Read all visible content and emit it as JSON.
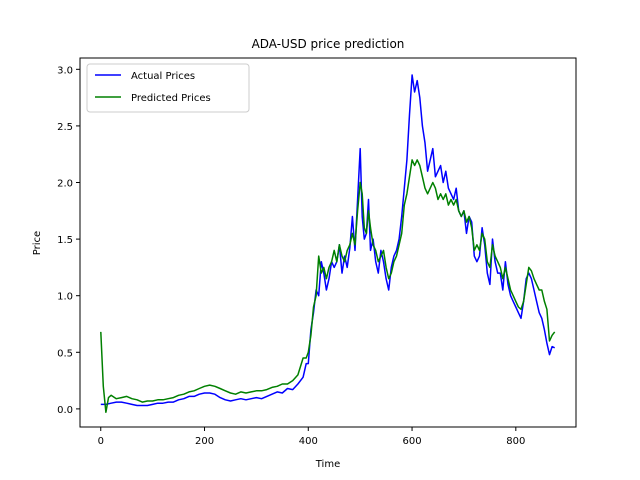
{
  "chart_data": {
    "type": "line",
    "title": "ADA-USD price prediction",
    "xlabel": "Time",
    "ylabel": "Price",
    "xlim": [
      -40,
      916
    ],
    "ylim": [
      -0.16,
      3.1
    ],
    "xticks": [
      0,
      200,
      400,
      600,
      800
    ],
    "yticks": [
      0.0,
      0.5,
      1.0,
      1.5,
      2.0,
      2.5,
      3.0
    ],
    "xtick_labels": [
      "0",
      "200",
      "400",
      "600",
      "800"
    ],
    "ytick_labels": [
      "0.0",
      "0.5",
      "1.0",
      "1.5",
      "2.0",
      "2.5",
      "3.0"
    ],
    "grid": false,
    "legend": {
      "position": "upper-left",
      "entries": [
        "Actual Prices",
        "Predicted Prices"
      ]
    },
    "series": [
      {
        "name": "Actual Prices",
        "color": "#0000ff",
        "points": [
          [
            0,
            0.04
          ],
          [
            10,
            0.04
          ],
          [
            20,
            0.05
          ],
          [
            30,
            0.06
          ],
          [
            40,
            0.06
          ],
          [
            50,
            0.05
          ],
          [
            60,
            0.04
          ],
          [
            70,
            0.03
          ],
          [
            80,
            0.03
          ],
          [
            90,
            0.03
          ],
          [
            100,
            0.04
          ],
          [
            110,
            0.05
          ],
          [
            120,
            0.05
          ],
          [
            130,
            0.06
          ],
          [
            140,
            0.06
          ],
          [
            150,
            0.08
          ],
          [
            160,
            0.09
          ],
          [
            170,
            0.11
          ],
          [
            180,
            0.11
          ],
          [
            190,
            0.13
          ],
          [
            200,
            0.14
          ],
          [
            210,
            0.14
          ],
          [
            220,
            0.13
          ],
          [
            230,
            0.1
          ],
          [
            240,
            0.08
          ],
          [
            250,
            0.07
          ],
          [
            260,
            0.08
          ],
          [
            270,
            0.09
          ],
          [
            280,
            0.08
          ],
          [
            290,
            0.09
          ],
          [
            300,
            0.1
          ],
          [
            310,
            0.09
          ],
          [
            320,
            0.11
          ],
          [
            330,
            0.13
          ],
          [
            340,
            0.15
          ],
          [
            350,
            0.14
          ],
          [
            360,
            0.18
          ],
          [
            370,
            0.17
          ],
          [
            380,
            0.22
          ],
          [
            390,
            0.28
          ],
          [
            396,
            0.4
          ],
          [
            400,
            0.4
          ],
          [
            405,
            0.7
          ],
          [
            410,
            0.85
          ],
          [
            415,
            1.05
          ],
          [
            420,
            1.0
          ],
          [
            425,
            1.3
          ],
          [
            430,
            1.2
          ],
          [
            435,
            1.05
          ],
          [
            440,
            1.15
          ],
          [
            445,
            1.3
          ],
          [
            450,
            1.25
          ],
          [
            455,
            1.3
          ],
          [
            460,
            1.45
          ],
          [
            465,
            1.2
          ],
          [
            470,
            1.35
          ],
          [
            475,
            1.25
          ],
          [
            480,
            1.42
          ],
          [
            485,
            1.7
          ],
          [
            490,
            1.4
          ],
          [
            495,
            1.85
          ],
          [
            500,
            2.3
          ],
          [
            504,
            1.7
          ],
          [
            508,
            1.5
          ],
          [
            512,
            1.55
          ],
          [
            516,
            1.85
          ],
          [
            520,
            1.4
          ],
          [
            525,
            1.5
          ],
          [
            530,
            1.3
          ],
          [
            535,
            1.2
          ],
          [
            540,
            1.4
          ],
          [
            545,
            1.3
          ],
          [
            550,
            1.15
          ],
          [
            555,
            1.05
          ],
          [
            560,
            1.25
          ],
          [
            565,
            1.35
          ],
          [
            570,
            1.4
          ],
          [
            575,
            1.5
          ],
          [
            580,
            1.7
          ],
          [
            585,
            1.95
          ],
          [
            590,
            2.2
          ],
          [
            595,
            2.6
          ],
          [
            600,
            2.95
          ],
          [
            605,
            2.8
          ],
          [
            610,
            2.9
          ],
          [
            615,
            2.75
          ],
          [
            620,
            2.5
          ],
          [
            625,
            2.35
          ],
          [
            630,
            2.1
          ],
          [
            635,
            2.2
          ],
          [
            640,
            2.3
          ],
          [
            645,
            2.05
          ],
          [
            650,
            2.1
          ],
          [
            655,
            2.15
          ],
          [
            660,
            2.0
          ],
          [
            665,
            2.1
          ],
          [
            670,
            1.95
          ],
          [
            675,
            1.9
          ],
          [
            680,
            1.85
          ],
          [
            685,
            1.95
          ],
          [
            690,
            1.75
          ],
          [
            695,
            1.7
          ],
          [
            700,
            1.75
          ],
          [
            705,
            1.55
          ],
          [
            710,
            1.7
          ],
          [
            715,
            1.65
          ],
          [
            720,
            1.35
          ],
          [
            725,
            1.3
          ],
          [
            730,
            1.35
          ],
          [
            735,
            1.6
          ],
          [
            740,
            1.45
          ],
          [
            745,
            1.2
          ],
          [
            750,
            1.1
          ],
          [
            755,
            1.5
          ],
          [
            760,
            1.3
          ],
          [
            765,
            1.2
          ],
          [
            770,
            1.2
          ],
          [
            775,
            1.05
          ],
          [
            780,
            1.3
          ],
          [
            785,
            1.1
          ],
          [
            790,
            1.0
          ],
          [
            795,
            0.95
          ],
          [
            800,
            0.9
          ],
          [
            805,
            0.85
          ],
          [
            810,
            0.8
          ],
          [
            815,
            0.95
          ],
          [
            820,
            1.15
          ],
          [
            825,
            1.2
          ],
          [
            830,
            1.15
          ],
          [
            835,
            1.05
          ],
          [
            840,
            0.95
          ],
          [
            845,
            0.85
          ],
          [
            850,
            0.8
          ],
          [
            855,
            0.7
          ],
          [
            860,
            0.58
          ],
          [
            865,
            0.48
          ],
          [
            870,
            0.55
          ],
          [
            875,
            0.54
          ]
        ]
      },
      {
        "name": "Predicted Prices",
        "color": "#008000",
        "points": [
          [
            0,
            0.68
          ],
          [
            5,
            0.2
          ],
          [
            10,
            -0.03
          ],
          [
            15,
            0.1
          ],
          [
            20,
            0.12
          ],
          [
            30,
            0.09
          ],
          [
            40,
            0.1
          ],
          [
            50,
            0.11
          ],
          [
            60,
            0.09
          ],
          [
            70,
            0.08
          ],
          [
            80,
            0.06
          ],
          [
            90,
            0.07
          ],
          [
            100,
            0.07
          ],
          [
            110,
            0.08
          ],
          [
            120,
            0.08
          ],
          [
            130,
            0.09
          ],
          [
            140,
            0.1
          ],
          [
            150,
            0.12
          ],
          [
            160,
            0.13
          ],
          [
            170,
            0.15
          ],
          [
            180,
            0.16
          ],
          [
            190,
            0.18
          ],
          [
            200,
            0.2
          ],
          [
            210,
            0.21
          ],
          [
            220,
            0.2
          ],
          [
            230,
            0.18
          ],
          [
            240,
            0.16
          ],
          [
            250,
            0.14
          ],
          [
            260,
            0.13
          ],
          [
            270,
            0.15
          ],
          [
            280,
            0.14
          ],
          [
            290,
            0.15
          ],
          [
            300,
            0.16
          ],
          [
            310,
            0.16
          ],
          [
            320,
            0.17
          ],
          [
            330,
            0.19
          ],
          [
            340,
            0.2
          ],
          [
            350,
            0.22
          ],
          [
            360,
            0.22
          ],
          [
            370,
            0.25
          ],
          [
            380,
            0.3
          ],
          [
            390,
            0.45
          ],
          [
            396,
            0.45
          ],
          [
            400,
            0.5
          ],
          [
            405,
            0.65
          ],
          [
            410,
            0.9
          ],
          [
            415,
            1.0
          ],
          [
            420,
            1.35
          ],
          [
            425,
            1.2
          ],
          [
            430,
            1.25
          ],
          [
            435,
            1.15
          ],
          [
            440,
            1.25
          ],
          [
            445,
            1.3
          ],
          [
            450,
            1.4
          ],
          [
            455,
            1.3
          ],
          [
            460,
            1.45
          ],
          [
            465,
            1.35
          ],
          [
            470,
            1.3
          ],
          [
            475,
            1.4
          ],
          [
            480,
            1.45
          ],
          [
            485,
            1.55
          ],
          [
            490,
            1.45
          ],
          [
            495,
            1.75
          ],
          [
            500,
            2.0
          ],
          [
            504,
            1.9
          ],
          [
            508,
            1.6
          ],
          [
            512,
            1.55
          ],
          [
            516,
            1.75
          ],
          [
            520,
            1.6
          ],
          [
            525,
            1.45
          ],
          [
            530,
            1.4
          ],
          [
            535,
            1.3
          ],
          [
            540,
            1.35
          ],
          [
            545,
            1.4
          ],
          [
            550,
            1.25
          ],
          [
            555,
            1.15
          ],
          [
            560,
            1.2
          ],
          [
            565,
            1.3
          ],
          [
            570,
            1.35
          ],
          [
            575,
            1.45
          ],
          [
            580,
            1.55
          ],
          [
            585,
            1.8
          ],
          [
            590,
            1.9
          ],
          [
            595,
            2.05
          ],
          [
            600,
            2.2
          ],
          [
            605,
            2.15
          ],
          [
            610,
            2.2
          ],
          [
            615,
            2.15
          ],
          [
            620,
            2.05
          ],
          [
            625,
            1.95
          ],
          [
            630,
            1.9
          ],
          [
            635,
            1.95
          ],
          [
            640,
            2.0
          ],
          [
            645,
            1.95
          ],
          [
            650,
            1.85
          ],
          [
            655,
            1.9
          ],
          [
            660,
            1.85
          ],
          [
            665,
            1.9
          ],
          [
            670,
            1.8
          ],
          [
            675,
            1.85
          ],
          [
            680,
            1.8
          ],
          [
            685,
            1.85
          ],
          [
            690,
            1.75
          ],
          [
            695,
            1.7
          ],
          [
            700,
            1.75
          ],
          [
            705,
            1.65
          ],
          [
            710,
            1.7
          ],
          [
            715,
            1.6
          ],
          [
            720,
            1.4
          ],
          [
            725,
            1.45
          ],
          [
            730,
            1.4
          ],
          [
            735,
            1.55
          ],
          [
            740,
            1.5
          ],
          [
            745,
            1.3
          ],
          [
            750,
            1.25
          ],
          [
            755,
            1.45
          ],
          [
            760,
            1.35
          ],
          [
            765,
            1.3
          ],
          [
            770,
            1.25
          ],
          [
            775,
            1.15
          ],
          [
            780,
            1.25
          ],
          [
            785,
            1.15
          ],
          [
            790,
            1.05
          ],
          [
            795,
            1.0
          ],
          [
            800,
            0.95
          ],
          [
            805,
            0.9
          ],
          [
            810,
            0.88
          ],
          [
            815,
            0.95
          ],
          [
            820,
            1.1
          ],
          [
            825,
            1.25
          ],
          [
            830,
            1.22
          ],
          [
            835,
            1.15
          ],
          [
            840,
            1.1
          ],
          [
            845,
            1.05
          ],
          [
            850,
            1.05
          ],
          [
            855,
            0.95
          ],
          [
            860,
            0.88
          ],
          [
            865,
            0.6
          ],
          [
            870,
            0.65
          ],
          [
            875,
            0.68
          ]
        ]
      }
    ]
  }
}
